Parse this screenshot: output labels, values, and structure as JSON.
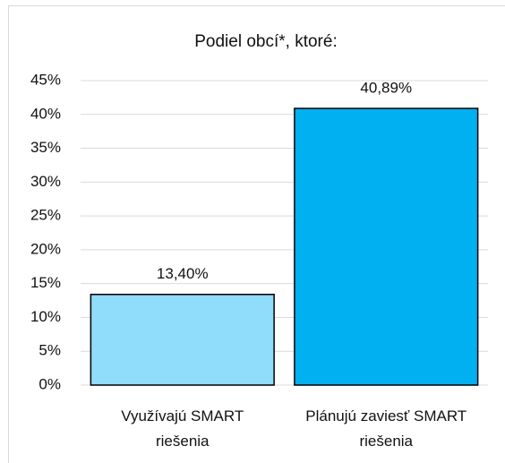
{
  "chart_data": {
    "type": "bar",
    "title": "Podiel obcí*, ktoré:",
    "categories": [
      "Využívajú SMART riešenia",
      "Plánujú zaviesť SMART riešenia"
    ],
    "values": [
      13.4,
      40.89
    ],
    "value_labels": [
      "13,40%",
      "40,89%"
    ],
    "colors": [
      "#8fdcfb",
      "#00b0f0"
    ],
    "ylim": [
      0,
      45
    ],
    "yticks": [
      {
        "value": 0,
        "label": "0%"
      },
      {
        "value": 5,
        "label": "5%"
      },
      {
        "value": 10,
        "label": "10%"
      },
      {
        "value": 15,
        "label": "15%"
      },
      {
        "value": 20,
        "label": "20%"
      },
      {
        "value": 25,
        "label": "25%"
      },
      {
        "value": 30,
        "label": "30%"
      },
      {
        "value": 35,
        "label": "35%"
      },
      {
        "value": 40,
        "label": "40%"
      },
      {
        "value": 45,
        "label": "45%"
      }
    ],
    "grid": true
  }
}
